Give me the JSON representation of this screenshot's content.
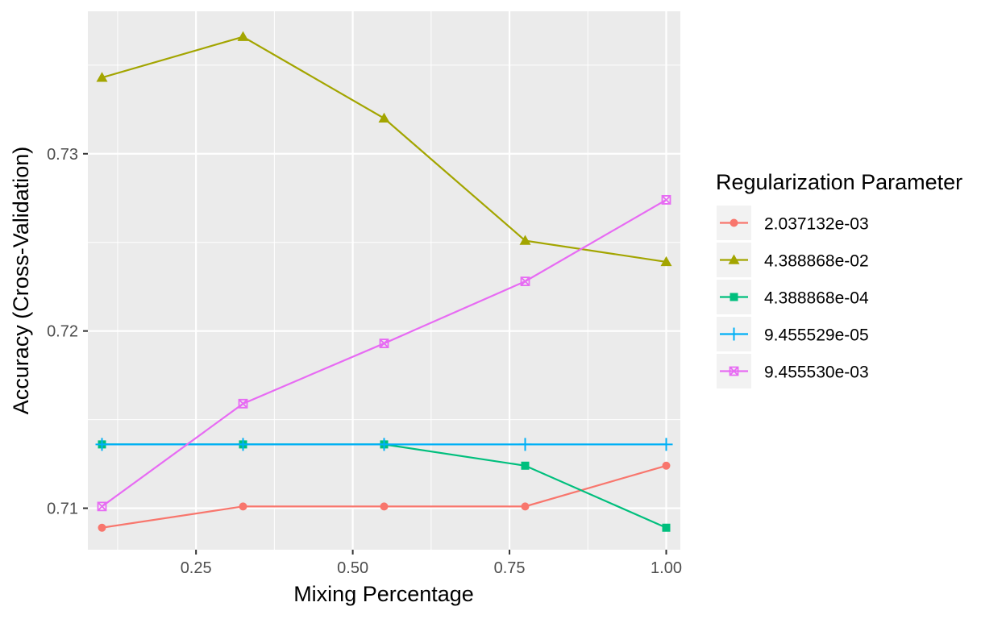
{
  "chart_data": {
    "type": "line",
    "xlabel": "Mixing Percentage",
    "ylabel": "Accuracy (Cross-Validation)",
    "x": [
      0.1,
      0.325,
      0.55,
      0.775,
      1.0
    ],
    "xlim": [
      0.0775,
      1.0225
    ],
    "ylim": [
      0.70766,
      0.73804
    ],
    "x_ticks": [
      0.25,
      0.5,
      0.75,
      1.0
    ],
    "x_tick_labels": [
      "0.25",
      "0.50",
      "0.75",
      "1.00"
    ],
    "y_ticks": [
      0.71,
      0.72,
      0.73
    ],
    "y_tick_labels": [
      "0.71",
      "0.72",
      "0.73"
    ],
    "grid": true,
    "legend": {
      "title": "Regularization Parameter",
      "position": "right"
    },
    "series": [
      {
        "name": "2.037132e-03",
        "color": "#F8766D",
        "marker": "circle",
        "values": [
          0.7089,
          0.7101,
          0.7101,
          0.7101,
          0.7124
        ]
      },
      {
        "name": "4.388868e-02",
        "color": "#A3A500",
        "marker": "triangle",
        "values": [
          0.7343,
          0.7366,
          0.732,
          0.7251,
          0.7239
        ]
      },
      {
        "name": "4.388868e-04",
        "color": "#00BF7D",
        "marker": "square",
        "values": [
          0.7136,
          0.7136,
          0.7136,
          0.7124,
          0.7089
        ]
      },
      {
        "name": "9.455529e-05",
        "color": "#00B0F6",
        "marker": "plus",
        "values": [
          0.7136,
          0.7136,
          0.7136,
          0.7136,
          0.7136
        ]
      },
      {
        "name": "9.455530e-03",
        "color": "#E76BF3",
        "marker": "square-cross",
        "values": [
          0.7101,
          0.7159,
          0.7193,
          0.7228,
          0.7274
        ]
      }
    ]
  }
}
